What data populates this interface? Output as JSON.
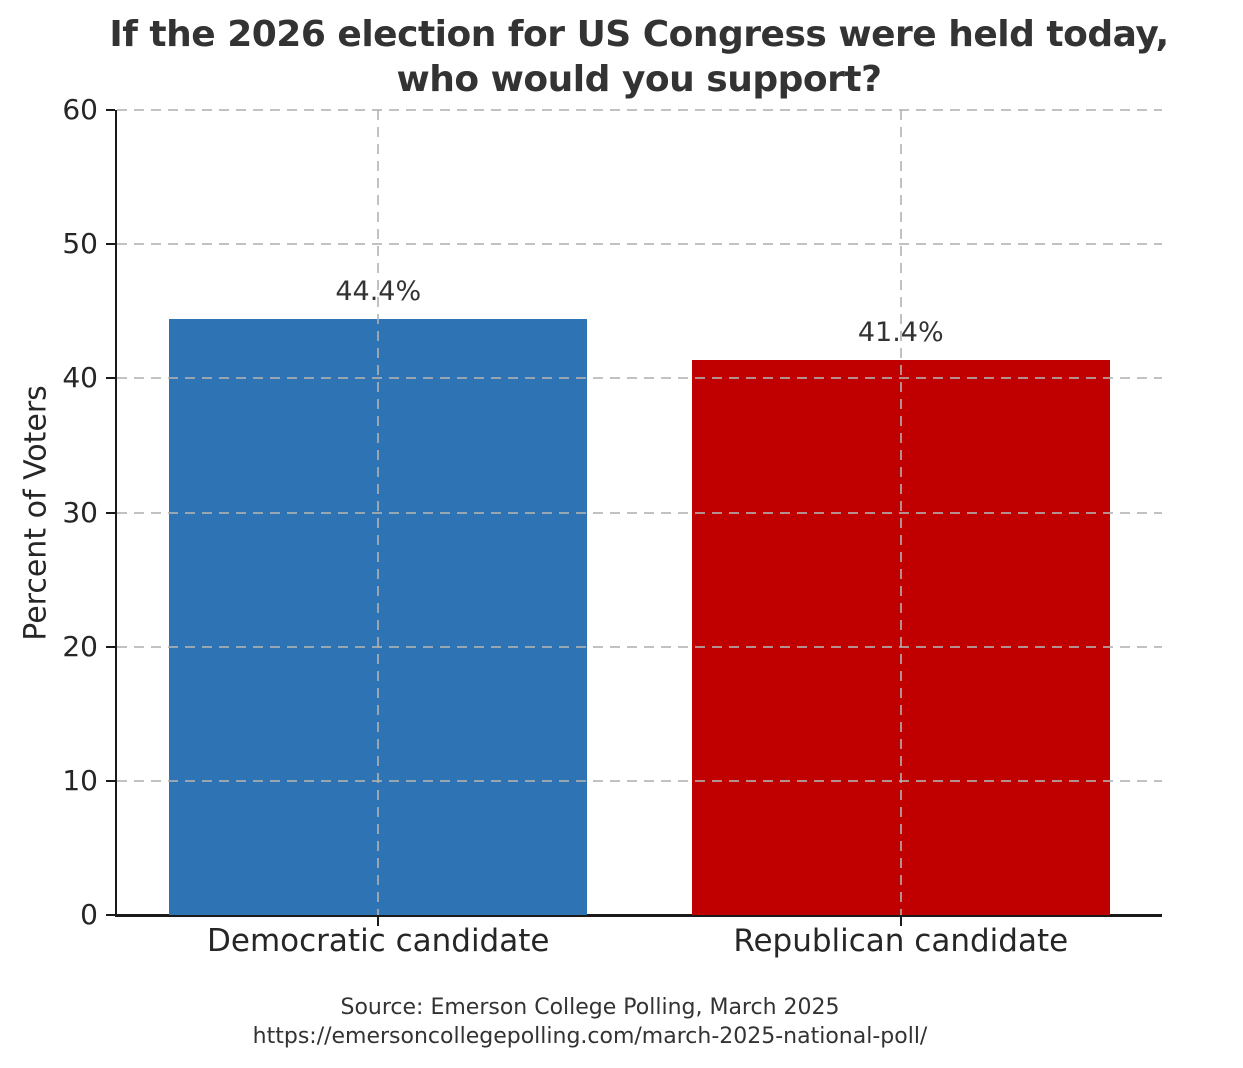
{
  "chart_data": {
    "type": "bar",
    "title": "If the 2026 election for US Congress were held today, who would you support?",
    "title_lines": [
      "If the 2026 election for US Congress were held today,",
      "who would you support?"
    ],
    "categories": [
      "Democratic candidate",
      "Republican candidate"
    ],
    "values": [
      44.4,
      41.4
    ],
    "value_labels": [
      "44.4%",
      "41.4%"
    ],
    "bar_colors": [
      "#2e74b5",
      "#c00000"
    ],
    "xlabel": "",
    "ylabel": "Percent of Voters",
    "ylim": [
      0,
      60
    ],
    "yticks": [
      0,
      10,
      20,
      30,
      40,
      50,
      60
    ],
    "grid": {
      "style": "dashed",
      "axes": "both",
      "color": "#c3c3c3",
      "drawn_over_bars": true
    },
    "legend": {
      "visible": false
    },
    "footer_lines": [
      "Source: Emerson College Polling, March 2025",
      "https://emersoncollegepolling.com/march-2025-national-poll/"
    ]
  },
  "colors": {
    "background": "#ffffff",
    "title_text": "#333333",
    "axis": "#1a1a1a",
    "democrat_blue": "#2e74b5",
    "republican_red": "#c00000"
  }
}
